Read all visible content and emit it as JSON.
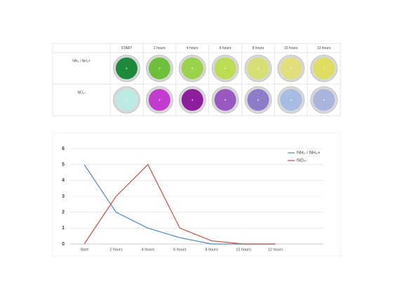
{
  "table": {
    "header": [
      "START",
      "2 hours",
      "4 hours",
      "6 hours",
      "8 hours",
      "10 hours",
      "12 hours"
    ],
    "rows": [
      {
        "label": "NH₃ / NH₄+",
        "colors": [
          "#1d8a3c",
          "#6dbf3c",
          "#9ad24c",
          "#bcdc54",
          "#d6df72",
          "#e0df7c",
          "#dedd62"
        ]
      },
      {
        "label": "NO₂-",
        "colors": [
          "#bcebe4",
          "#c23ccf",
          "#8c1f9c",
          "#9a58c2",
          "#8e7cc8",
          "#a8bce2",
          "#a9b5dc"
        ]
      }
    ]
  },
  "chart_data": {
    "type": "line",
    "categories": [
      "Start",
      "2 hours",
      "4 hours",
      "6 hours",
      "8 hours",
      "10 hours",
      "12 hours"
    ],
    "series": [
      {
        "name": "NH₃ / NH₄+",
        "color": "#4f86c0",
        "values": [
          5,
          2,
          1,
          0.4,
          0,
          0,
          0
        ]
      },
      {
        "name": "NO₂-",
        "color": "#c0504d",
        "values": [
          0,
          3,
          5,
          1,
          0.2,
          0,
          0
        ]
      }
    ],
    "ylim": [
      0,
      6
    ],
    "yticks": [
      0,
      1,
      2,
      3,
      4,
      5,
      6
    ],
    "grid": true,
    "legend": "top-right"
  }
}
